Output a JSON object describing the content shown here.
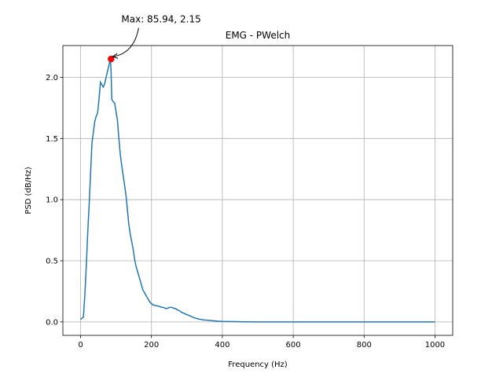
{
  "chart_data": {
    "type": "line",
    "title": "EMG - PWelch",
    "xlabel": "Frequency (Hz)",
    "ylabel": "PSD (dB/Hz)",
    "xlim": [
      -50,
      1050
    ],
    "ylim": [
      -0.11,
      2.26
    ],
    "xticks": [
      0,
      200,
      400,
      600,
      800,
      1000
    ],
    "yticks": [
      0.0,
      0.5,
      1.0,
      1.5,
      2.0
    ],
    "xtick_labels": [
      "0",
      "200",
      "400",
      "600",
      "800",
      "1000"
    ],
    "ytick_labels": [
      "0.0",
      "0.5",
      "1.0",
      "1.5",
      "2.0"
    ],
    "grid": true,
    "series": [
      {
        "color": "#1f77b4",
        "x": [
          0,
          4,
          8,
          12,
          16,
          20,
          24,
          28,
          32,
          36,
          40,
          44,
          48,
          52,
          56,
          60,
          64,
          68,
          72,
          76,
          80,
          84,
          86,
          88,
          92,
          96,
          100,
          104,
          108,
          112,
          116,
          120,
          124,
          128,
          132,
          136,
          140,
          144,
          148,
          152,
          156,
          160,
          164,
          168,
          172,
          176,
          180,
          184,
          188,
          192,
          196,
          200,
          204,
          208,
          212,
          216,
          220,
          224,
          228,
          232,
          236,
          240,
          244,
          248,
          252,
          256,
          260,
          264,
          268,
          272,
          276,
          280,
          284,
          288,
          292,
          296,
          300,
          304,
          308,
          312,
          316,
          320,
          324,
          328,
          332,
          336,
          340,
          344,
          348,
          352,
          356,
          360,
          364,
          368,
          372,
          376,
          380,
          384,
          388,
          392,
          396,
          400,
          420,
          440,
          460,
          480,
          500,
          550,
          600,
          650,
          700,
          750,
          800,
          850,
          900,
          950,
          1000
        ],
        "y": [
          0.02,
          0.03,
          0.04,
          0.22,
          0.45,
          0.72,
          0.95,
          1.2,
          1.46,
          1.55,
          1.64,
          1.68,
          1.71,
          1.82,
          1.96,
          1.94,
          1.92,
          1.95,
          2.0,
          2.05,
          2.1,
          2.15,
          2.05,
          1.82,
          1.8,
          1.79,
          1.72,
          1.65,
          1.5,
          1.37,
          1.28,
          1.2,
          1.12,
          1.04,
          0.92,
          0.8,
          0.72,
          0.66,
          0.6,
          0.52,
          0.46,
          0.42,
          0.38,
          0.34,
          0.3,
          0.26,
          0.24,
          0.22,
          0.2,
          0.18,
          0.16,
          0.15,
          0.14,
          0.135,
          0.135,
          0.13,
          0.13,
          0.125,
          0.12,
          0.12,
          0.115,
          0.11,
          0.11,
          0.115,
          0.12,
          0.12,
          0.115,
          0.11,
          0.11,
          0.1,
          0.095,
          0.09,
          0.08,
          0.075,
          0.07,
          0.065,
          0.06,
          0.055,
          0.05,
          0.045,
          0.04,
          0.035,
          0.03,
          0.028,
          0.025,
          0.022,
          0.02,
          0.018,
          0.016,
          0.015,
          0.014,
          0.013,
          0.012,
          0.011,
          0.01,
          0.009,
          0.008,
          0.007,
          0.006,
          0.005,
          0.005,
          0.004,
          0.003,
          0.002,
          0.001,
          0.001,
          0.0,
          0.0,
          0.0,
          0.0,
          0.0,
          0.0,
          0.0,
          0.0,
          0.0,
          0.0,
          0.0
        ]
      }
    ],
    "annotation": {
      "text": "Max: 85.94, 2.15",
      "x": 85.94,
      "y": 2.15,
      "text_x": 115,
      "text_y": 2.45,
      "marker_color": "#ff0000"
    }
  }
}
